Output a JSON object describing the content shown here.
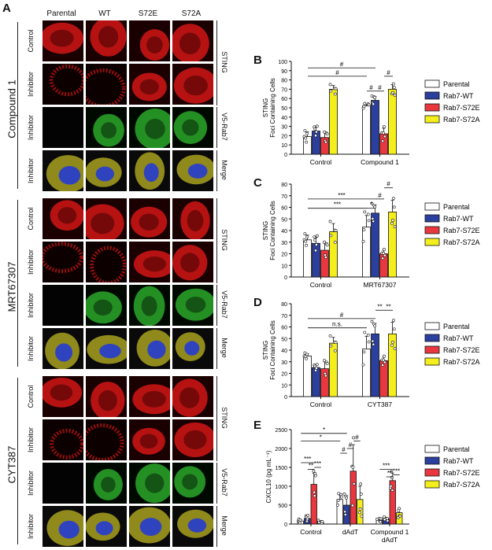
{
  "panel_a": {
    "letter": "A",
    "columns": [
      "Parental",
      "WT",
      "S72E",
      "S72A"
    ],
    "groups": [
      {
        "name": "Compound 1",
        "rows": [
          "Control",
          "Inhibitor",
          "Inhibitor",
          "Inhibitor"
        ],
        "channels": [
          "STING",
          "V5-Rab7",
          "Merge"
        ]
      },
      {
        "name": "MRT67307",
        "rows": [
          "Control",
          "Inhibitor",
          "Inhibitor",
          "Inhibitor"
        ],
        "channels": [
          "STING",
          "V5-Rab7",
          "Merge"
        ]
      },
      {
        "name": "CYT387",
        "rows": [
          "Control",
          "Inhibitor",
          "Inhibitor",
          "Inhibitor"
        ],
        "channels": [
          "STING",
          "V5-Rab7",
          "Merge"
        ]
      }
    ]
  },
  "legend": {
    "entries": [
      "Parental",
      "Rab7-WT",
      "Rab7-S72E",
      "Rab7-S72A"
    ],
    "colors": [
      "#ffffff",
      "#2b3f9e",
      "#e8373f",
      "#f4ee1c"
    ]
  },
  "chart_data": [
    {
      "letter": "B",
      "type": "bar",
      "ylabel": "STING\nFoci Containing Cells",
      "ylim": [
        0,
        100
      ],
      "yticks": [
        0,
        10,
        20,
        30,
        40,
        50,
        60,
        70,
        80,
        90,
        100
      ],
      "categories": [
        "Control",
        "Compound 1"
      ],
      "series": [
        {
          "name": "Parental",
          "values": [
            19,
            52
          ],
          "errors": [
            5,
            2
          ]
        },
        {
          "name": "Rab7-WT",
          "values": [
            25,
            58
          ],
          "errors": [
            4,
            4
          ]
        },
        {
          "name": "Rab7-S72E",
          "values": [
            18,
            22
          ],
          "errors": [
            5,
            6
          ]
        },
        {
          "name": "Rab7-S72A",
          "values": [
            70,
            70
          ],
          "errors": [
            4,
            5
          ]
        }
      ],
      "annotations": [
        "#",
        "#",
        "#",
        "#",
        "#"
      ]
    },
    {
      "letter": "C",
      "type": "bar",
      "ylabel": "STING\nFoci Containing Cells",
      "ylim": [
        0,
        80
      ],
      "yticks": [
        0,
        10,
        20,
        30,
        40,
        50,
        60,
        70,
        80
      ],
      "categories": [
        "Control",
        "MRT67307"
      ],
      "series": [
        {
          "name": "Parental",
          "values": [
            32,
            43
          ],
          "errors": [
            4,
            10
          ]
        },
        {
          "name": "Rab7-WT",
          "values": [
            29,
            55
          ],
          "errors": [
            5,
            7
          ]
        },
        {
          "name": "Rab7-S72E",
          "values": [
            23,
            20
          ],
          "errors": [
            6,
            3
          ]
        },
        {
          "name": "Rab7-S72A",
          "values": [
            39,
            56
          ],
          "errors": [
            7,
            10
          ]
        }
      ],
      "annotations": [
        "***",
        "***",
        "*",
        "#",
        "#"
      ]
    },
    {
      "letter": "D",
      "type": "bar",
      "ylabel": "STING\nFoci Containing Cells",
      "ylim": [
        0,
        80
      ],
      "yticks": [
        0,
        10,
        20,
        30,
        40,
        50,
        60,
        70,
        80
      ],
      "categories": [
        "Control",
        "CYT387"
      ],
      "series": [
        {
          "name": "Parental",
          "values": [
            35,
            41
          ],
          "errors": [
            2,
            11
          ]
        },
        {
          "name": "Rab7-WT",
          "values": [
            25,
            54
          ],
          "errors": [
            2,
            9
          ]
        },
        {
          "name": "Rab7-S72E",
          "values": [
            24,
            31
          ],
          "errors": [
            6,
            3
          ]
        },
        {
          "name": "Rab7-S72A",
          "values": [
            46,
            54
          ],
          "errors": [
            5,
            10
          ]
        }
      ],
      "annotations": [
        "n.s.",
        "#",
        "**",
        "**"
      ]
    },
    {
      "letter": "E",
      "type": "bar",
      "ylabel": "CXCL10 (pg mL⁻¹)",
      "ylim": [
        0,
        2500
      ],
      "yticks": [
        0,
        500,
        1000,
        1500,
        2000,
        2500
      ],
      "categories": [
        "Control",
        "dAdT",
        "Compound 1\ndAdT"
      ],
      "series": [
        {
          "name": "Parental",
          "values": [
            80,
            650,
            100
          ],
          "errors": [
            40,
            120,
            40
          ]
        },
        {
          "name": "Rab7-WT",
          "values": [
            150,
            500,
            140
          ],
          "errors": [
            60,
            250,
            40
          ]
        },
        {
          "name": "Rab7-S72E",
          "values": [
            1050,
            1400,
            1150
          ],
          "errors": [
            300,
            700,
            200
          ]
        },
        {
          "name": "Rab7-S72A",
          "values": [
            60,
            650,
            300
          ],
          "errors": [
            30,
            350,
            100
          ]
        }
      ],
      "annotations": [
        "*",
        "*",
        "#",
        "#",
        "#",
        "***",
        "**",
        "***",
        "***",
        "**",
        "***"
      ]
    }
  ]
}
